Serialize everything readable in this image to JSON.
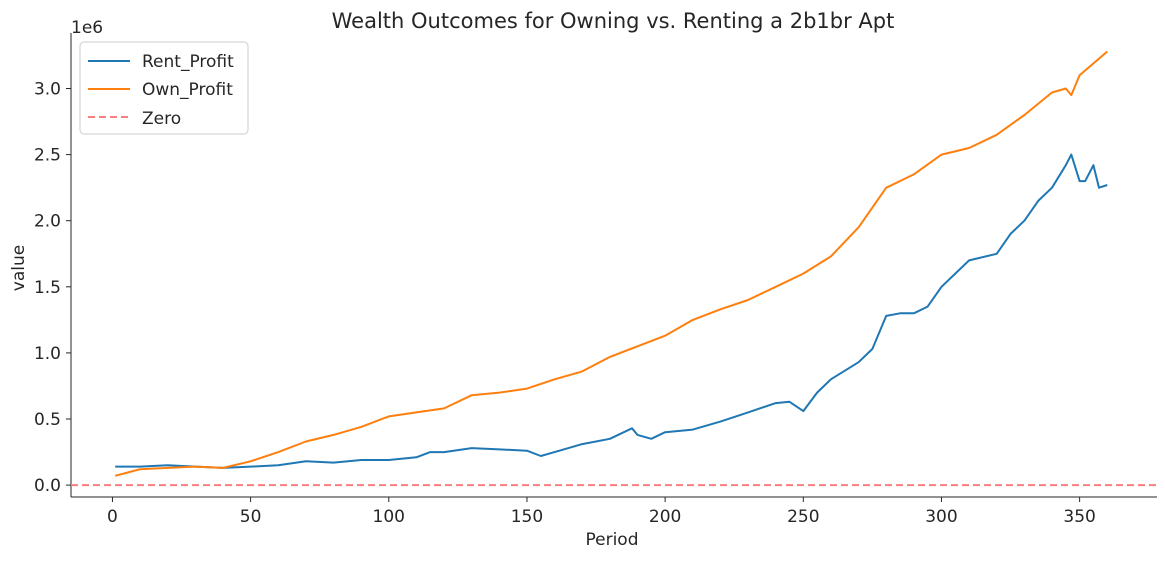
{
  "chart_data": {
    "type": "line",
    "title": "Wealth Outcomes for Owning vs. Renting a 2b1br Apt",
    "xlabel": "Period",
    "ylabel": "value",
    "y_offset_label": "1e6",
    "xlim": [
      -15,
      378
    ],
    "ylim": [
      -0.09,
      3.42
    ],
    "x_ticks": [
      0,
      50,
      100,
      150,
      200,
      250,
      300,
      350
    ],
    "y_ticks": [
      0.0,
      0.5,
      1.0,
      1.5,
      2.0,
      2.5,
      3.0
    ],
    "y_tick_labels": [
      "0.0",
      "0.5",
      "1.0",
      "1.5",
      "2.0",
      "2.5",
      "3.0"
    ],
    "grid": false,
    "legend_position": "top-left",
    "series": [
      {
        "name": "Rent_Profit",
        "color": "#1f77b4",
        "style": "solid",
        "x": [
          1,
          10,
          20,
          30,
          40,
          50,
          60,
          70,
          80,
          90,
          100,
          110,
          115,
          120,
          130,
          140,
          150,
          155,
          160,
          170,
          180,
          188,
          190,
          195,
          200,
          210,
          220,
          230,
          240,
          245,
          250,
          255,
          260,
          270,
          275,
          280,
          285,
          290,
          295,
          300,
          310,
          320,
          325,
          330,
          335,
          340,
          345,
          347,
          350,
          352,
          355,
          357,
          360
        ],
        "values": [
          0.14,
          0.14,
          0.15,
          0.14,
          0.13,
          0.14,
          0.15,
          0.18,
          0.17,
          0.19,
          0.19,
          0.21,
          0.25,
          0.25,
          0.28,
          0.27,
          0.26,
          0.22,
          0.25,
          0.31,
          0.35,
          0.43,
          0.38,
          0.35,
          0.4,
          0.42,
          0.48,
          0.55,
          0.62,
          0.63,
          0.56,
          0.7,
          0.8,
          0.93,
          1.03,
          1.28,
          1.3,
          1.3,
          1.35,
          1.5,
          1.7,
          1.75,
          1.9,
          2.0,
          2.15,
          2.25,
          2.42,
          2.5,
          2.3,
          2.3,
          2.42,
          2.25,
          2.27
        ]
      },
      {
        "name": "Own_Profit",
        "color": "#ff7f0e",
        "style": "solid",
        "x": [
          1,
          10,
          20,
          30,
          40,
          50,
          60,
          70,
          80,
          90,
          100,
          110,
          120,
          130,
          140,
          150,
          160,
          170,
          180,
          190,
          200,
          210,
          220,
          230,
          240,
          250,
          260,
          270,
          280,
          290,
          300,
          310,
          320,
          330,
          340,
          345,
          347,
          350,
          360
        ],
        "values": [
          0.07,
          0.12,
          0.13,
          0.14,
          0.13,
          0.18,
          0.25,
          0.33,
          0.38,
          0.44,
          0.52,
          0.55,
          0.58,
          0.68,
          0.7,
          0.73,
          0.8,
          0.86,
          0.97,
          1.05,
          1.13,
          1.25,
          1.33,
          1.4,
          1.5,
          1.6,
          1.73,
          1.95,
          2.25,
          2.35,
          2.5,
          2.55,
          2.65,
          2.8,
          2.97,
          3.0,
          2.95,
          3.1,
          3.28
        ]
      },
      {
        "name": "Zero",
        "color": "#fa7f7f",
        "style": "dashed",
        "hline": 0.0
      }
    ]
  }
}
